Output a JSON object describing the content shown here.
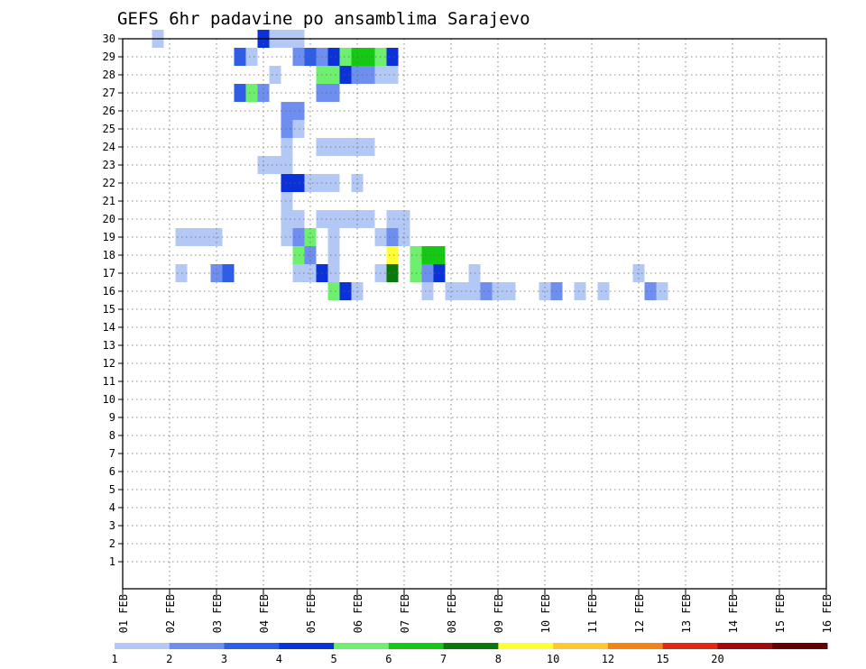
{
  "chart_data": {
    "type": "heatmap",
    "title": "GEFS 6hr padavine po ansamblima Sarajevo",
    "xlabel": "",
    "ylabel": "",
    "grid": true,
    "legend_placement": "bottom",
    "x_tick_labels": [
      "01 FEB",
      "02 FEB",
      "03 FEB",
      "04 FEB",
      "05 FEB",
      "06 FEB",
      "07 FEB",
      "08 FEB",
      "09 FEB",
      "10 FEB",
      "11 FEB",
      "12 FEB",
      "13 FEB",
      "14 FEB",
      "15 FEB",
      "16 FEB"
    ],
    "y_tick_labels": [
      "1",
      "2",
      "3",
      "4",
      "5",
      "6",
      "7",
      "8",
      "9",
      "10",
      "11",
      "12",
      "13",
      "14",
      "15",
      "16",
      "17",
      "18",
      "19",
      "20",
      "21",
      "22",
      "23",
      "24",
      "25",
      "26",
      "27",
      "28",
      "29",
      "30"
    ],
    "x_range": [
      "01 FEB 00",
      "16 FEB 00"
    ],
    "x_step_hours": 6,
    "y_range": [
      0,
      30
    ],
    "colorbar": {
      "labels": [
        "1",
        "2",
        "3",
        "4",
        "5",
        "6",
        "7",
        "8",
        "10",
        "12",
        "15",
        "20"
      ],
      "colors": [
        "#b4c8f5",
        "#6e8ef0",
        "#2e5ee8",
        "#0a32d8",
        "#6ef06e",
        "#14c814",
        "#0a780a",
        "#ffff32",
        "#ffc832",
        "#f58214",
        "#e12814",
        "#a00a0a",
        "#640000"
      ]
    },
    "cells": [
      {
        "t": "01 FEB 18",
        "m": 30,
        "v": 1
      },
      {
        "t": "03 FEB 12",
        "m": 29,
        "v": 3
      },
      {
        "t": "03 FEB 18",
        "m": 29,
        "v": 1
      },
      {
        "t": "04 FEB 00",
        "m": 30,
        "v": 4
      },
      {
        "t": "04 FEB 06",
        "m": 30,
        "v": 1
      },
      {
        "t": "04 FEB 12",
        "m": 30,
        "v": 1
      },
      {
        "t": "04 FEB 18",
        "m": 29,
        "v": 2
      },
      {
        "t": "04 FEB 18",
        "m": 30,
        "v": 1
      },
      {
        "t": "05 FEB 00",
        "m": 29,
        "v": 3
      },
      {
        "t": "05 FEB 06",
        "m": 29,
        "v": 2
      },
      {
        "t": "05 FEB 12",
        "m": 29,
        "v": 4
      },
      {
        "t": "05 FEB 18",
        "m": 29,
        "v": 5
      },
      {
        "t": "06 FEB 00",
        "m": 29,
        "v": 6
      },
      {
        "t": "06 FEB 06",
        "m": 29,
        "v": 6
      },
      {
        "t": "06 FEB 12",
        "m": 29,
        "v": 5
      },
      {
        "t": "06 FEB 18",
        "m": 29,
        "v": 4
      },
      {
        "t": "04 FEB 06",
        "m": 28,
        "v": 1
      },
      {
        "t": "05 FEB 06",
        "m": 28,
        "v": 5
      },
      {
        "t": "05 FEB 12",
        "m": 28,
        "v": 5
      },
      {
        "t": "05 FEB 18",
        "m": 28,
        "v": 4
      },
      {
        "t": "06 FEB 00",
        "m": 28,
        "v": 2
      },
      {
        "t": "06 FEB 06",
        "m": 28,
        "v": 2
      },
      {
        "t": "06 FEB 12",
        "m": 28,
        "v": 1
      },
      {
        "t": "06 FEB 18",
        "m": 28,
        "v": 1
      },
      {
        "t": "03 FEB 12",
        "m": 27,
        "v": 3
      },
      {
        "t": "03 FEB 18",
        "m": 27,
        "v": 5
      },
      {
        "t": "04 FEB 00",
        "m": 27,
        "v": 2
      },
      {
        "t": "05 FEB 06",
        "m": 27,
        "v": 2
      },
      {
        "t": "05 FEB 12",
        "m": 27,
        "v": 2
      },
      {
        "t": "04 FEB 12",
        "m": 26,
        "v": 2
      },
      {
        "t": "04 FEB 18",
        "m": 26,
        "v": 2
      },
      {
        "t": "04 FEB 12",
        "m": 25,
        "v": 2
      },
      {
        "t": "04 FEB 18",
        "m": 25,
        "v": 1
      },
      {
        "t": "04 FEB 12",
        "m": 24,
        "v": 1
      },
      {
        "t": "05 FEB 06",
        "m": 24,
        "v": 1
      },
      {
        "t": "05 FEB 12",
        "m": 24,
        "v": 1
      },
      {
        "t": "05 FEB 18",
        "m": 24,
        "v": 1
      },
      {
        "t": "06 FEB 00",
        "m": 24,
        "v": 1
      },
      {
        "t": "06 FEB 06",
        "m": 24,
        "v": 1
      },
      {
        "t": "04 FEB 00",
        "m": 23,
        "v": 1
      },
      {
        "t": "04 FEB 06",
        "m": 23,
        "v": 1
      },
      {
        "t": "04 FEB 12",
        "m": 23,
        "v": 1
      },
      {
        "t": "04 FEB 12",
        "m": 22,
        "v": 4
      },
      {
        "t": "04 FEB 18",
        "m": 22,
        "v": 4
      },
      {
        "t": "05 FEB 00",
        "m": 22,
        "v": 1
      },
      {
        "t": "05 FEB 06",
        "m": 22,
        "v": 1
      },
      {
        "t": "05 FEB 12",
        "m": 22,
        "v": 1
      },
      {
        "t": "06 FEB 00",
        "m": 22,
        "v": 1
      },
      {
        "t": "04 FEB 12",
        "m": 21,
        "v": 1
      },
      {
        "t": "04 FEB 12",
        "m": 20,
        "v": 1
      },
      {
        "t": "04 FEB 18",
        "m": 20,
        "v": 1
      },
      {
        "t": "05 FEB 06",
        "m": 20,
        "v": 1
      },
      {
        "t": "05 FEB 12",
        "m": 20,
        "v": 1
      },
      {
        "t": "05 FEB 18",
        "m": 20,
        "v": 1
      },
      {
        "t": "06 FEB 00",
        "m": 20,
        "v": 1
      },
      {
        "t": "06 FEB 06",
        "m": 20,
        "v": 1
      },
      {
        "t": "06 FEB 18",
        "m": 20,
        "v": 1
      },
      {
        "t": "07 FEB 00",
        "m": 20,
        "v": 1
      },
      {
        "t": "02 FEB 06",
        "m": 19,
        "v": 1
      },
      {
        "t": "02 FEB 12",
        "m": 19,
        "v": 1
      },
      {
        "t": "02 FEB 18",
        "m": 19,
        "v": 1
      },
      {
        "t": "03 FEB 00",
        "m": 19,
        "v": 1
      },
      {
        "t": "04 FEB 12",
        "m": 19,
        "v": 1
      },
      {
        "t": "04 FEB 18",
        "m": 19,
        "v": 2
      },
      {
        "t": "05 FEB 00",
        "m": 19,
        "v": 5
      },
      {
        "t": "05 FEB 12",
        "m": 19,
        "v": 1
      },
      {
        "t": "06 FEB 12",
        "m": 19,
        "v": 1
      },
      {
        "t": "06 FEB 18",
        "m": 19,
        "v": 2
      },
      {
        "t": "07 FEB 00",
        "m": 19,
        "v": 1
      },
      {
        "t": "04 FEB 18",
        "m": 18,
        "v": 5
      },
      {
        "t": "05 FEB 00",
        "m": 18,
        "v": 2
      },
      {
        "t": "05 FEB 12",
        "m": 18,
        "v": 1
      },
      {
        "t": "06 FEB 18",
        "m": 18,
        "v": 8
      },
      {
        "t": "07 FEB 06",
        "m": 18,
        "v": 5
      },
      {
        "t": "07 FEB 12",
        "m": 18,
        "v": 6
      },
      {
        "t": "07 FEB 18",
        "m": 18,
        "v": 6
      },
      {
        "t": "02 FEB 06",
        "m": 17,
        "v": 1
      },
      {
        "t": "03 FEB 00",
        "m": 17,
        "v": 2
      },
      {
        "t": "03 FEB 06",
        "m": 17,
        "v": 3
      },
      {
        "t": "04 FEB 18",
        "m": 17,
        "v": 1
      },
      {
        "t": "05 FEB 00",
        "m": 17,
        "v": 1
      },
      {
        "t": "05 FEB 06",
        "m": 17,
        "v": 4
      },
      {
        "t": "05 FEB 12",
        "m": 17,
        "v": 1
      },
      {
        "t": "06 FEB 12",
        "m": 17,
        "v": 1
      },
      {
        "t": "06 FEB 18",
        "m": 17,
        "v": 7
      },
      {
        "t": "07 FEB 06",
        "m": 17,
        "v": 5
      },
      {
        "t": "07 FEB 12",
        "m": 17,
        "v": 2
      },
      {
        "t": "07 FEB 18",
        "m": 17,
        "v": 4
      },
      {
        "t": "08 FEB 12",
        "m": 17,
        "v": 1
      },
      {
        "t": "12 FEB 00",
        "m": 17,
        "v": 1
      },
      {
        "t": "05 FEB 12",
        "m": 16,
        "v": 5
      },
      {
        "t": "05 FEB 18",
        "m": 16,
        "v": 4
      },
      {
        "t": "06 FEB 00",
        "m": 16,
        "v": 1
      },
      {
        "t": "07 FEB 12",
        "m": 16,
        "v": 1
      },
      {
        "t": "08 FEB 00",
        "m": 16,
        "v": 1
      },
      {
        "t": "08 FEB 06",
        "m": 16,
        "v": 1
      },
      {
        "t": "08 FEB 12",
        "m": 16,
        "v": 1
      },
      {
        "t": "08 FEB 18",
        "m": 16,
        "v": 2
      },
      {
        "t": "09 FEB 00",
        "m": 16,
        "v": 1
      },
      {
        "t": "09 FEB 06",
        "m": 16,
        "v": 1
      },
      {
        "t": "10 FEB 00",
        "m": 16,
        "v": 1
      },
      {
        "t": "10 FEB 06",
        "m": 16,
        "v": 2
      },
      {
        "t": "10 FEB 18",
        "m": 16,
        "v": 1
      },
      {
        "t": "11 FEB 06",
        "m": 16,
        "v": 1
      },
      {
        "t": "12 FEB 06",
        "m": 16,
        "v": 2
      },
      {
        "t": "12 FEB 12",
        "m": 16,
        "v": 1
      }
    ]
  }
}
